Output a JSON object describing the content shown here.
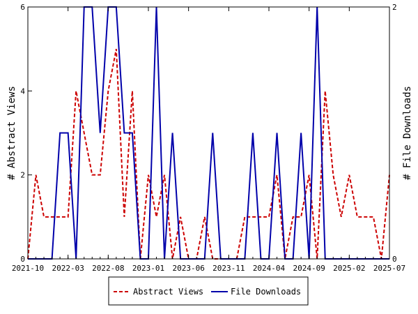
{
  "chart_data": {
    "type": "line",
    "title": "",
    "x_tick_labels": [
      "2021-10",
      "2022-03",
      "2022-08",
      "2023-01",
      "2023-06",
      "2023-11",
      "2024-04",
      "2024-09",
      "2025-02",
      "2025-07"
    ],
    "x_start": "2021-10",
    "x_end": "2025-07",
    "left_axis": {
      "label": "# Abstract Views",
      "ylim": [
        0,
        6
      ],
      "ticks": [
        0,
        2,
        4,
        6
      ]
    },
    "right_axis": {
      "label": "# File Downloads",
      "ylim": [
        0,
        2
      ],
      "ticks": [
        0,
        2
      ]
    },
    "grid": false,
    "legend_position": "bottom",
    "series": [
      {
        "name": "Abstract Views",
        "axis": "left",
        "color": "#cc0000",
        "dash": true,
        "points": [
          [
            "2021-10",
            0
          ],
          [
            "2021-11",
            2
          ],
          [
            "2021-12",
            1
          ],
          [
            "2022-01",
            1
          ],
          [
            "2022-02",
            1
          ],
          [
            "2022-03",
            1
          ],
          [
            "2022-04",
            4
          ],
          [
            "2022-05",
            3
          ],
          [
            "2022-06",
            2
          ],
          [
            "2022-07",
            2
          ],
          [
            "2022-08",
            4
          ],
          [
            "2022-09",
            5
          ],
          [
            "2022-10",
            1
          ],
          [
            "2022-11",
            4
          ],
          [
            "2022-12",
            0
          ],
          [
            "2023-01",
            2
          ],
          [
            "2023-02",
            1
          ],
          [
            "2023-03",
            2
          ],
          [
            "2023-04",
            0
          ],
          [
            "2023-05",
            1
          ],
          [
            "2023-06",
            0
          ],
          [
            "2023-07",
            0
          ],
          [
            "2023-08",
            1
          ],
          [
            "2023-09",
            0
          ],
          [
            "2023-10",
            0
          ],
          [
            "2023-11",
            0
          ],
          [
            "2023-12",
            0
          ],
          [
            "2024-01",
            1
          ],
          [
            "2024-02",
            1
          ],
          [
            "2024-03",
            1
          ],
          [
            "2024-04",
            1
          ],
          [
            "2024-05",
            2
          ],
          [
            "2024-06",
            0
          ],
          [
            "2024-07",
            1
          ],
          [
            "2024-08",
            1
          ],
          [
            "2024-09",
            2
          ],
          [
            "2024-10",
            0
          ],
          [
            "2024-11",
            4
          ],
          [
            "2024-12",
            2
          ],
          [
            "2025-01",
            1
          ],
          [
            "2025-02",
            2
          ],
          [
            "2025-03",
            1
          ],
          [
            "2025-04",
            1
          ],
          [
            "2025-05",
            1
          ],
          [
            "2025-06",
            0
          ],
          [
            "2025-07",
            2
          ]
        ]
      },
      {
        "name": "File Downloads",
        "axis": "right",
        "color": "#0000aa",
        "dash": false,
        "points": [
          [
            "2021-10",
            0
          ],
          [
            "2021-11",
            0
          ],
          [
            "2021-12",
            0
          ],
          [
            "2022-01",
            0
          ],
          [
            "2022-02",
            1
          ],
          [
            "2022-03",
            1
          ],
          [
            "2022-04",
            0
          ],
          [
            "2022-05",
            2
          ],
          [
            "2022-06",
            2
          ],
          [
            "2022-07",
            1
          ],
          [
            "2022-08",
            2
          ],
          [
            "2022-09",
            2
          ],
          [
            "2022-10",
            1
          ],
          [
            "2022-11",
            1
          ],
          [
            "2022-12",
            0
          ],
          [
            "2023-01",
            0
          ],
          [
            "2023-02",
            2
          ],
          [
            "2023-03",
            0
          ],
          [
            "2023-04",
            1
          ],
          [
            "2023-05",
            0
          ],
          [
            "2023-06",
            0
          ],
          [
            "2023-07",
            0
          ],
          [
            "2023-08",
            0
          ],
          [
            "2023-09",
            1
          ],
          [
            "2023-10",
            0
          ],
          [
            "2023-11",
            0
          ],
          [
            "2023-12",
            0
          ],
          [
            "2024-01",
            0
          ],
          [
            "2024-02",
            1
          ],
          [
            "2024-03",
            0
          ],
          [
            "2024-04",
            0
          ],
          [
            "2024-05",
            1
          ],
          [
            "2024-06",
            0
          ],
          [
            "2024-07",
            0
          ],
          [
            "2024-08",
            1
          ],
          [
            "2024-09",
            0
          ],
          [
            "2024-10",
            2
          ],
          [
            "2024-11",
            0
          ],
          [
            "2024-12",
            0
          ],
          [
            "2025-01",
            0
          ],
          [
            "2025-02",
            0
          ],
          [
            "2025-03",
            0
          ],
          [
            "2025-04",
            0
          ],
          [
            "2025-05",
            0
          ],
          [
            "2025-06",
            0
          ],
          [
            "2025-07",
            0
          ]
        ]
      }
    ]
  }
}
